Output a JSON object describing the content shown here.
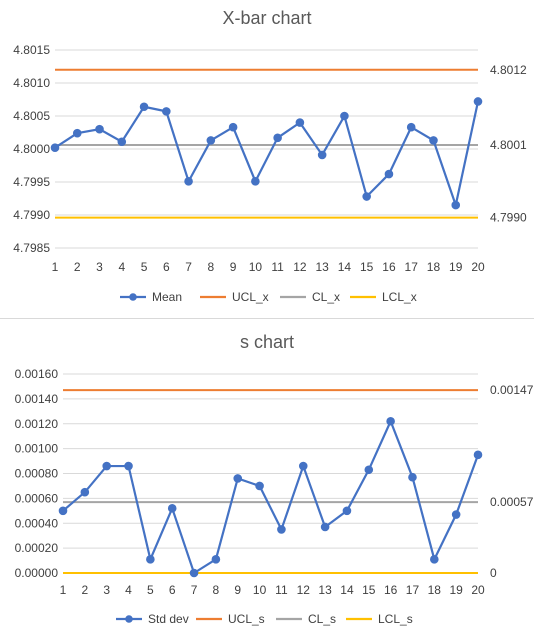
{
  "chart_data": [
    {
      "type": "line",
      "title": "X-bar chart",
      "categories": [
        "1",
        "2",
        "3",
        "4",
        "5",
        "6",
        "7",
        "8",
        "9",
        "10",
        "11",
        "12",
        "13",
        "14",
        "15",
        "16",
        "17",
        "18",
        "19",
        "20"
      ],
      "ylim": [
        4.7985,
        4.8015
      ],
      "y_ticks": [
        "4.7985",
        "4.7990",
        "4.7995",
        "4.8000",
        "4.8005",
        "4.8010",
        "4.8015"
      ],
      "grid": true,
      "legend_position": "bottom",
      "series": [
        {
          "name": "Mean",
          "color": "#4472C4",
          "markers": true,
          "values": [
            4.80002,
            4.80024,
            4.8003,
            4.80011,
            4.80064,
            4.80057,
            4.79951,
            4.80013,
            4.80033,
            4.79951,
            4.80017,
            4.8004,
            4.79991,
            4.8005,
            4.79928,
            4.79962,
            4.80033,
            4.80013,
            4.79915,
            4.80072
          ]
        },
        {
          "name": "UCL_x",
          "color": "#ED7D31",
          "markers": false,
          "constant": 4.8012
        },
        {
          "name": "CL_x",
          "color": "#A5A5A5",
          "markers": false,
          "constant": 4.80006
        },
        {
          "name": "LCL_x",
          "color": "#FFC000",
          "markers": false,
          "constant": 4.79896
        }
      ],
      "annotations": [
        {
          "text": "4.8012",
          "series": "UCL_x"
        },
        {
          "text": "4.8001",
          "series": "CL_x"
        },
        {
          "text": "4.7990",
          "series": "LCL_x"
        }
      ]
    },
    {
      "type": "line",
      "title": "s chart",
      "categories": [
        "1",
        "2",
        "3",
        "4",
        "5",
        "6",
        "7",
        "8",
        "9",
        "10",
        "11",
        "12",
        "13",
        "14",
        "15",
        "16",
        "17",
        "18",
        "19",
        "20"
      ],
      "ylim": [
        0,
        0.0016
      ],
      "y_ticks": [
        "0.00000",
        "0.00020",
        "0.00040",
        "0.00060",
        "0.00080",
        "0.00100",
        "0.00120",
        "0.00140",
        "0.00160"
      ],
      "grid": true,
      "legend_position": "bottom",
      "series": [
        {
          "name": "Std dev",
          "color": "#4472C4",
          "markers": true,
          "values": [
            0.0005,
            0.00065,
            0.00086,
            0.00086,
            0.00011,
            0.00052,
            0.0,
            0.00011,
            0.00076,
            0.0007,
            0.00035,
            0.00086,
            0.00037,
            0.0005,
            0.00083,
            0.00122,
            0.00077,
            0.00011,
            0.00047,
            0.00095
          ]
        },
        {
          "name": "UCL_s",
          "color": "#ED7D31",
          "markers": false,
          "constant": 0.00147
        },
        {
          "name": "CL_s",
          "color": "#A5A5A5",
          "markers": false,
          "constant": 0.00057
        },
        {
          "name": "LCL_s",
          "color": "#FFC000",
          "markers": false,
          "constant": 0
        }
      ],
      "annotations": [
        {
          "text": "0.00147",
          "series": "UCL_s"
        },
        {
          "text": "0.00057",
          "series": "CL_s"
        },
        {
          "text": "0",
          "series": "LCL_s"
        }
      ]
    }
  ]
}
